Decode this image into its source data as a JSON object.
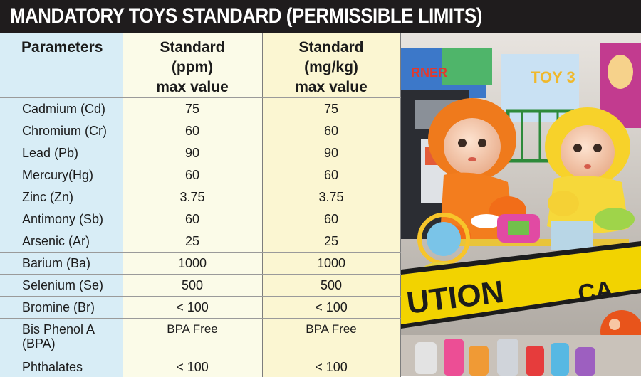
{
  "title": "MANDATORY TOYS STANDARD (PERMISSIBLE LIMITS)",
  "table": {
    "headers": {
      "parameters": "Parameters",
      "ppm": [
        "Standard",
        "(ppm)",
        "max value"
      ],
      "mgkg": [
        "Standard",
        "(mg/kg)",
        "max value"
      ]
    },
    "rows": [
      {
        "param": "Cadmium (Cd)",
        "ppm": "75",
        "mgkg": "75"
      },
      {
        "param": "Chromium (Cr)",
        "ppm": "60",
        "mgkg": "60"
      },
      {
        "param": "Lead (Pb)",
        "ppm": "90",
        "mgkg": "90"
      },
      {
        "param": "Mercury(Hg)",
        "ppm": "60",
        "mgkg": "60"
      },
      {
        "param": "Zinc (Zn)",
        "ppm": "3.75",
        "mgkg": "3.75"
      },
      {
        "param": "Antimony (Sb)",
        "ppm": "60",
        "mgkg": "60"
      },
      {
        "param": "Arsenic (Ar)",
        "ppm": "25",
        "mgkg": "25"
      },
      {
        "param": "Barium (Ba)",
        "ppm": "1000",
        "mgkg": "1000"
      },
      {
        "param": "Selenium (Se)",
        "ppm": "500",
        "mgkg": "500"
      },
      {
        "param": "Bromine (Br)",
        "ppm": "< 100",
        "mgkg": "< 100"
      },
      {
        "param": "Bis Phenol A (BPA)",
        "ppm": "BPA Free",
        "mgkg": "BPA Free"
      },
      {
        "param": "Phthalates",
        "ppm": "< 100",
        "mgkg": "< 100"
      }
    ]
  },
  "photo": {
    "description_icon": "toys-photo-icon",
    "caution_tape_text": "UTION",
    "caution_tape_text_2": "CA",
    "package_text_1": "RNER",
    "package_text_2": "TOY 3"
  },
  "colors": {
    "title_bg": "#1f1c1d",
    "param_col_bg": "#d8edf6",
    "ppm_col_bg": "#fbfbe8",
    "mgkg_col_bg": "#fbf6d2"
  }
}
